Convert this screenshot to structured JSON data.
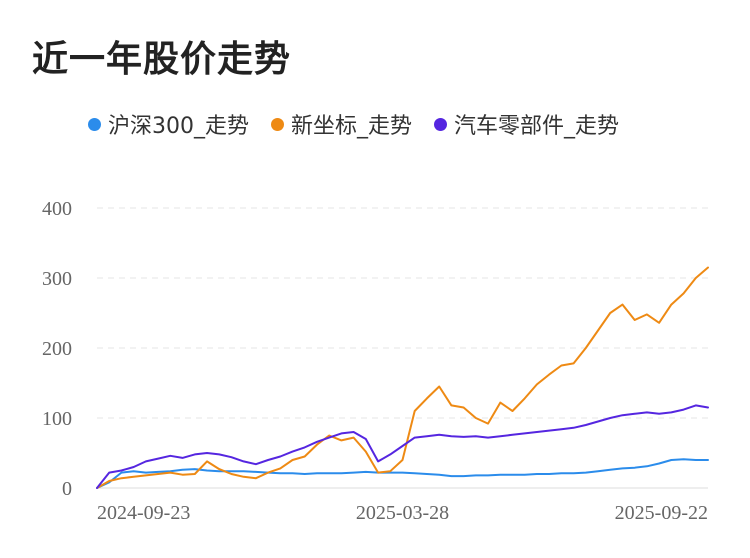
{
  "title": "近一年股价走势",
  "chart_data": {
    "type": "line",
    "title": "近一年股价走势",
    "xlabel": "",
    "ylabel": "",
    "ylim": [
      0,
      400
    ],
    "yticks": [
      0,
      100,
      200,
      300,
      400
    ],
    "x_tick_labels": [
      "2024-09-23",
      "2025-03-28",
      "2025-09-22"
    ],
    "legend_position": "top-left",
    "grid": true,
    "x": [
      0,
      1,
      2,
      3,
      4,
      5,
      6,
      7,
      8,
      9,
      10,
      11,
      12,
      13,
      14,
      15,
      16,
      17,
      18,
      19,
      20,
      21,
      22,
      23,
      24,
      25,
      26,
      27,
      28,
      29,
      30,
      31,
      32,
      33,
      34,
      35,
      36,
      37,
      38,
      39,
      40,
      41,
      42,
      43,
      44,
      45,
      46,
      47,
      48,
      49,
      50
    ],
    "series": [
      {
        "name": "沪深300_走势",
        "color": "#2b8ceb",
        "values": [
          0,
          8,
          22,
          24,
          22,
          23,
          24,
          26,
          27,
          25,
          24,
          24,
          24,
          23,
          22,
          21,
          21,
          20,
          21,
          21,
          21,
          22,
          23,
          22,
          22,
          22,
          21,
          20,
          19,
          17,
          17,
          18,
          18,
          19,
          19,
          19,
          20,
          20,
          21,
          21,
          22,
          24,
          26,
          28,
          29,
          31,
          35,
          40,
          41,
          40,
          40
        ]
      },
      {
        "name": "新坐标_走势",
        "color": "#ee8a14",
        "values": [
          0,
          10,
          14,
          16,
          18,
          20,
          22,
          19,
          20,
          38,
          27,
          20,
          16,
          14,
          22,
          28,
          40,
          45,
          62,
          75,
          68,
          72,
          52,
          22,
          24,
          40,
          110,
          128,
          145,
          118,
          115,
          100,
          92,
          122,
          110,
          128,
          148,
          162,
          175,
          178,
          200,
          225,
          250,
          262,
          240,
          248,
          236,
          262,
          278,
          300,
          315
        ]
      },
      {
        "name": "汽车零部件_走势",
        "color": "#5526e0",
        "values": [
          0,
          22,
          25,
          30,
          38,
          42,
          46,
          43,
          48,
          50,
          48,
          44,
          38,
          34,
          40,
          45,
          52,
          58,
          66,
          72,
          78,
          80,
          70,
          38,
          48,
          60,
          72,
          74,
          76,
          74,
          73,
          74,
          72,
          74,
          76,
          78,
          80,
          82,
          84,
          86,
          90,
          95,
          100,
          104,
          106,
          108,
          106,
          108,
          112,
          118,
          115
        ]
      }
    ]
  }
}
